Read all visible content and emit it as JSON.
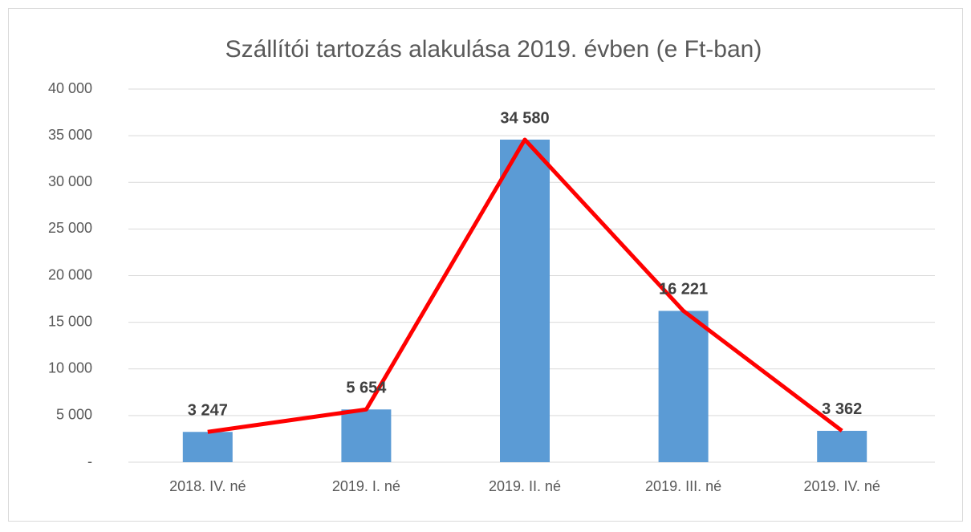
{
  "chart_data": {
    "type": "combo",
    "title": "Szállítói tartozás alakulása 2019. évben (e Ft-ban)",
    "categories": [
      "2018. IV. né",
      "2019. I. né",
      "2019. II. né",
      "2019. III. né",
      "2019. IV. né"
    ],
    "series": [
      {
        "type": "bar",
        "color": "#5b9bd5",
        "values": [
          3247,
          5654,
          34580,
          16221,
          3362
        ],
        "value_labels": [
          "3 247",
          "5 654",
          "34 580",
          "16 221",
          "3 362"
        ]
      },
      {
        "type": "line",
        "color": "#ff0000",
        "values": [
          3247,
          5654,
          34580,
          16221,
          3362
        ]
      }
    ],
    "ylim": [
      0,
      40000
    ],
    "yticks": [
      {
        "value": 0,
        "label": "-"
      },
      {
        "value": 5000,
        "label": "5 000"
      },
      {
        "value": 10000,
        "label": "10 000"
      },
      {
        "value": 15000,
        "label": "15 000"
      },
      {
        "value": 20000,
        "label": "20 000"
      },
      {
        "value": 25000,
        "label": "25 000"
      },
      {
        "value": 30000,
        "label": "30 000"
      },
      {
        "value": 35000,
        "label": "35 000"
      },
      {
        "value": 40000,
        "label": "40 000"
      }
    ],
    "grid": true
  }
}
